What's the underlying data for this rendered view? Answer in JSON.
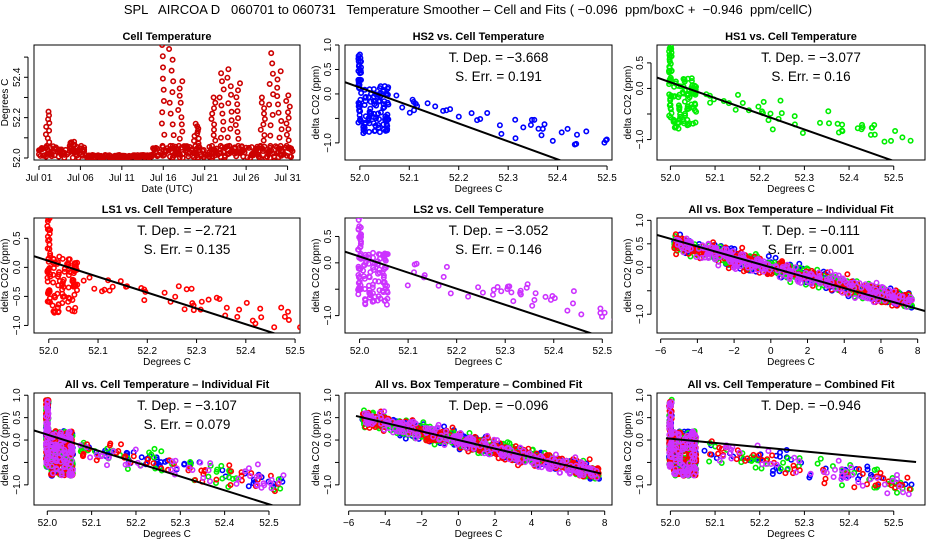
{
  "page": {
    "title": "SPL   AIRCOA D   060701 to 060731   Temperature Smoother – Cell and Fits ( −0.096  ppm/boxC +  −0.946  ppm/cellC)"
  },
  "colors": {
    "HS2": "#0000ff",
    "HS1": "#00ee00",
    "LS1": "#ff0000",
    "LS2": "#cc33ff",
    "cell": "#cc0000",
    "fit": "#000000"
  },
  "chart_data": [
    {
      "id": "cell-temp",
      "type": "scatter",
      "title": "Cell Temperature",
      "xlabel": "Date (UTC)",
      "ylabel": "Degrees C",
      "x_ticks": [
        "Jul 01",
        "Jul 06",
        "Jul 11",
        "Jul 16",
        "Jul 21",
        "Jul 26",
        "Jul 31"
      ],
      "x_tick_days": [
        1,
        6,
        11,
        16,
        21,
        26,
        31
      ],
      "xlim": [
        0.4,
        32.5
      ],
      "y_ticks": [
        52.0,
        52.2,
        52.4
      ],
      "y_minor_ticks": [
        52.1,
        52.3,
        52.5
      ],
      "ylim": [
        51.99,
        52.56
      ],
      "series": [
        {
          "name": "Cell",
          "color_key": "cell",
          "baseline": 52.0,
          "spikes": [
            [
              2.0,
              52.23
            ],
            [
              5.0,
              52.08
            ],
            [
              16.0,
              52.56
            ],
            [
              17.0,
              52.54
            ],
            [
              18.0,
              52.38
            ],
            [
              20.0,
              52.17
            ],
            [
              22.0,
              52.3
            ],
            [
              23.0,
              52.42
            ],
            [
              24.0,
              52.44
            ],
            [
              25.0,
              52.37
            ],
            [
              28.0,
              52.3
            ],
            [
              29.0,
              52.52
            ],
            [
              30.0,
              52.43
            ],
            [
              31.0,
              52.31
            ]
          ]
        }
      ]
    },
    {
      "id": "hs2-cell",
      "type": "scatter",
      "title": "HS2 vs. Cell Temperature",
      "xlabel": "Degrees C",
      "ylabel": "delta CO2 (ppm)",
      "x_ticks": [
        52.0,
        52.1,
        52.2,
        52.3,
        52.4,
        52.5
      ],
      "xlim": [
        51.97,
        52.51
      ],
      "y_ticks": [
        -1.0,
        -0.5,
        0.0,
        0.5,
        1.0
      ],
      "y_tick_labels": [
        "−1.0",
        "",
        "0.0",
        "0.5",
        "1.0"
      ],
      "ylim": [
        -1.35,
        1.0
      ],
      "annotation": {
        "tdep_label": "T. Dep. =",
        "tdep": "−3.668",
        "serr_label": "S. Err. =",
        "serr": "0.191"
      },
      "fit": {
        "slope": -3.668,
        "x0": 52.0,
        "y0": 0.13
      },
      "series": [
        {
          "name": "HS2",
          "color_key": "HS2"
        }
      ]
    },
    {
      "id": "hs1-cell",
      "type": "scatter",
      "title": "HS1 vs. Cell Temperature",
      "xlabel": "Degrees C",
      "ylabel": "delta CO2 (ppm)",
      "x_ticks": [
        52.0,
        52.1,
        52.2,
        52.3,
        52.4,
        52.5
      ],
      "xlim": [
        51.97,
        52.57
      ],
      "y_ticks": [
        -1.0,
        -0.5,
        0.0,
        0.5
      ],
      "y_tick_labels": [
        "−1.0",
        "",
        "0.0",
        "0.5"
      ],
      "ylim": [
        -1.4,
        0.85
      ],
      "annotation": {
        "tdep_label": "T. Dep. =",
        "tdep": "−3.077",
        "serr_label": "S. Err. =",
        "serr": "0.16"
      },
      "fit": {
        "slope": -3.077,
        "x0": 52.0,
        "y0": 0.12
      },
      "series": [
        {
          "name": "HS1",
          "color_key": "HS1"
        }
      ]
    },
    {
      "id": "ls1-cell",
      "type": "scatter",
      "title": "LS1 vs. Cell Temperature",
      "xlabel": "Degrees C",
      "ylabel": "delta CO2 (ppm)",
      "x_ticks": [
        52.0,
        52.1,
        52.2,
        52.3,
        52.4,
        52.5
      ],
      "xlim": [
        51.97,
        52.51
      ],
      "y_ticks": [
        -1.0,
        -0.5,
        0.0,
        0.5
      ],
      "y_tick_labels": [
        "−1.0",
        "−0.5",
        "0.0",
        "0.5"
      ],
      "ylim": [
        -1.13,
        0.85
      ],
      "annotation": {
        "tdep_label": "T. Dep. =",
        "tdep": "−2.721",
        "serr_label": "S. Err. =",
        "serr": "0.135"
      },
      "fit": {
        "slope": -2.721,
        "x0": 52.0,
        "y0": 0.11
      },
      "series": [
        {
          "name": "LS1",
          "color_key": "LS1"
        }
      ]
    },
    {
      "id": "ls2-cell",
      "type": "scatter",
      "title": "LS2 vs. Cell Temperature",
      "xlabel": "Degrees C",
      "ylabel": "delta CO2 (ppm)",
      "x_ticks": [
        52.0,
        52.1,
        52.2,
        52.3,
        52.4,
        52.5
      ],
      "xlim": [
        51.97,
        52.52
      ],
      "y_ticks": [
        -1.0,
        -0.5,
        0.0,
        0.5
      ],
      "y_tick_labels": [
        "−1.0",
        "",
        "0.0",
        "0.5"
      ],
      "ylim": [
        -1.33,
        0.85
      ],
      "annotation": {
        "tdep_label": "T. Dep. =",
        "tdep": "−3.052",
        "serr_label": "S. Err. =",
        "serr": "0.146"
      },
      "fit": {
        "slope": -3.052,
        "x0": 52.0,
        "y0": 0.12
      },
      "series": [
        {
          "name": "LS2",
          "color_key": "LS2"
        }
      ]
    },
    {
      "id": "all-box-individual",
      "type": "scatter",
      "title": "All vs. Box Temperature – Individual Fit",
      "xlabel": "Degrees C",
      "ylabel": "delta CO2 (ppm)",
      "x_ticks": [
        -6,
        -4,
        -2,
        0,
        2,
        4,
        6,
        8
      ],
      "x_tick_labels": [
        "−6",
        "−4",
        "−2",
        "0",
        "2",
        "4",
        "6",
        "8"
      ],
      "xlim": [
        -6.2,
        8.4
      ],
      "y_ticks": [
        -1.0,
        -0.5,
        0.0,
        0.5,
        1.0
      ],
      "y_tick_labels": [
        "−1.0",
        "",
        "0.0",
        "0.5",
        "1.0"
      ],
      "ylim": [
        -1.4,
        1.05
      ],
      "annotation": {
        "tdep_label": "T. Dep. =",
        "tdep": "−0.111",
        "serr_label": "S. Err. =",
        "serr": "0.001"
      },
      "fit": {
        "slope": -0.111,
        "x0": 0,
        "y0": 0.0
      },
      "series": [
        {
          "name": "HS2",
          "color_key": "HS2"
        },
        {
          "name": "HS1",
          "color_key": "HS1"
        },
        {
          "name": "LS1",
          "color_key": "LS1"
        },
        {
          "name": "LS2",
          "color_key": "LS2"
        }
      ]
    },
    {
      "id": "all-cell-individual",
      "type": "scatter",
      "title": "All vs. Cell Temperature – Individual Fit",
      "xlabel": "Degrees C",
      "ylabel": "delta CO2 (ppm)",
      "x_ticks": [
        52.0,
        52.1,
        52.2,
        52.3,
        52.4,
        52.5
      ],
      "xlim": [
        51.97,
        52.57
      ],
      "y_ticks": [
        -1.0,
        -0.5,
        0.0,
        0.5,
        1.0
      ],
      "y_tick_labels": [
        "−1.0",
        "",
        "0.0",
        "0.5",
        "1.0"
      ],
      "ylim": [
        -1.45,
        1.05
      ],
      "annotation": {
        "tdep_label": "T. Dep. =",
        "tdep": "−3.107",
        "serr_label": "S. Err. =",
        "serr": "0.079"
      },
      "fit": {
        "slope": -3.107,
        "x0": 52.0,
        "y0": 0.12
      },
      "series": [
        {
          "name": "HS2",
          "color_key": "HS2"
        },
        {
          "name": "HS1",
          "color_key": "HS1"
        },
        {
          "name": "LS1",
          "color_key": "LS1"
        },
        {
          "name": "LS2",
          "color_key": "LS2"
        }
      ]
    },
    {
      "id": "all-box-combined",
      "type": "scatter",
      "title": "All vs. Box Temperature – Combined Fit",
      "xlabel": "Degrees C",
      "ylabel": "delta CO2 (ppm)",
      "x_ticks": [
        -6,
        -4,
        -2,
        0,
        2,
        4,
        6,
        8
      ],
      "x_tick_labels": [
        "−6",
        "−4",
        "−2",
        "0",
        "2",
        "4",
        "6",
        "8"
      ],
      "xlim": [
        -6.2,
        8.4
      ],
      "y_ticks": [
        -1.0,
        -0.5,
        0.0,
        0.5,
        1.0
      ],
      "y_tick_labels": [
        "−1.0",
        "",
        "0.0",
        "0.5",
        "1.0"
      ],
      "ylim": [
        -1.45,
        1.05
      ],
      "annotation": {
        "tdep_label": "T. Dep. =",
        "tdep": "−0.096"
      },
      "fit": {
        "slope": -0.096,
        "x0": 0,
        "y0": 0.0,
        "xrange": [
          -5.6,
          7.8
        ]
      },
      "series": [
        {
          "name": "HS2",
          "color_key": "HS2"
        },
        {
          "name": "HS1",
          "color_key": "HS1"
        },
        {
          "name": "LS1",
          "color_key": "LS1"
        },
        {
          "name": "LS2",
          "color_key": "LS2"
        }
      ]
    },
    {
      "id": "all-cell-combined",
      "type": "scatter",
      "title": "All vs. Cell Temperature – Combined Fit",
      "xlabel": "Degrees C",
      "ylabel": "delta CO2 (ppm)",
      "x_ticks": [
        52.0,
        52.1,
        52.2,
        52.3,
        52.4,
        52.5
      ],
      "xlim": [
        51.97,
        52.57
      ],
      "y_ticks": [
        -1.0,
        -0.5,
        0.0,
        0.5,
        1.0
      ],
      "y_tick_labels": [
        "−1.0",
        "",
        "0.0",
        "0.5",
        "1.0"
      ],
      "ylim": [
        -1.45,
        1.05
      ],
      "annotation": {
        "tdep_label": "T. Dep. =",
        "tdep": "−0.946"
      },
      "fit": {
        "slope": -0.946,
        "x0": 52.0,
        "y0": 0.03,
        "xrange": [
          51.99,
          52.55
        ]
      },
      "series": [
        {
          "name": "HS2",
          "color_key": "HS2"
        },
        {
          "name": "HS1",
          "color_key": "HS1"
        },
        {
          "name": "LS1",
          "color_key": "LS1"
        },
        {
          "name": "LS2",
          "color_key": "LS2"
        }
      ]
    }
  ]
}
